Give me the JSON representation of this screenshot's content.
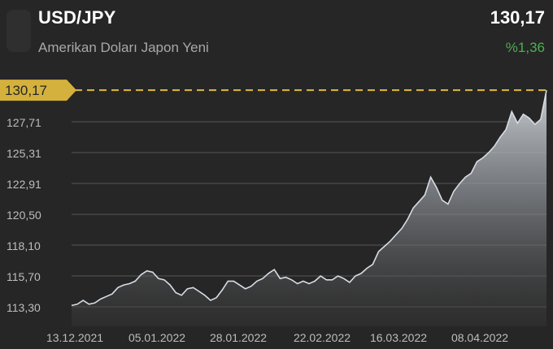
{
  "header": {
    "symbol": "USD/JPY",
    "name": "Amerikan Doları Japon Yeni",
    "price": "130,17",
    "change": "%1,36"
  },
  "colors": {
    "background": "#262626",
    "positive": "#4caf50",
    "highlight": "#d4b13c",
    "line": "#d7dde4"
  },
  "chart_data": {
    "type": "area",
    "y_ticks": [
      "127,71",
      "125,31",
      "122,91",
      "120,50",
      "118,10",
      "115,70",
      "113,30"
    ],
    "x_ticks": [
      "13.12.2021",
      "05.01.2022",
      "28.01.2022",
      "22.02.2022",
      "16.03.2022",
      "08.04.2022"
    ],
    "current_value_label": "130,17",
    "ylim": [
      112.3,
      130.6
    ],
    "values": [
      113.4,
      113.5,
      113.8,
      113.5,
      113.6,
      113.9,
      114.1,
      114.3,
      114.8,
      115.0,
      115.1,
      115.3,
      115.8,
      116.1,
      116.0,
      115.5,
      115.4,
      115.0,
      114.4,
      114.2,
      114.7,
      114.8,
      114.5,
      114.2,
      113.8,
      114.0,
      114.6,
      115.3,
      115.3,
      115.0,
      114.7,
      114.9,
      115.3,
      115.5,
      115.9,
      116.2,
      115.5,
      115.6,
      115.4,
      115.1,
      115.3,
      115.1,
      115.3,
      115.7,
      115.4,
      115.4,
      115.7,
      115.5,
      115.2,
      115.7,
      115.9,
      116.3,
      116.6,
      117.6,
      118.0,
      118.4,
      118.9,
      119.4,
      120.1,
      121.0,
      121.5,
      122.0,
      123.4,
      122.6,
      121.6,
      121.3,
      122.3,
      122.9,
      123.4,
      123.7,
      124.6,
      124.9,
      125.3,
      125.8,
      126.5,
      127.1,
      128.5,
      127.6,
      128.3,
      128.0,
      127.5,
      127.9,
      130.17
    ]
  }
}
